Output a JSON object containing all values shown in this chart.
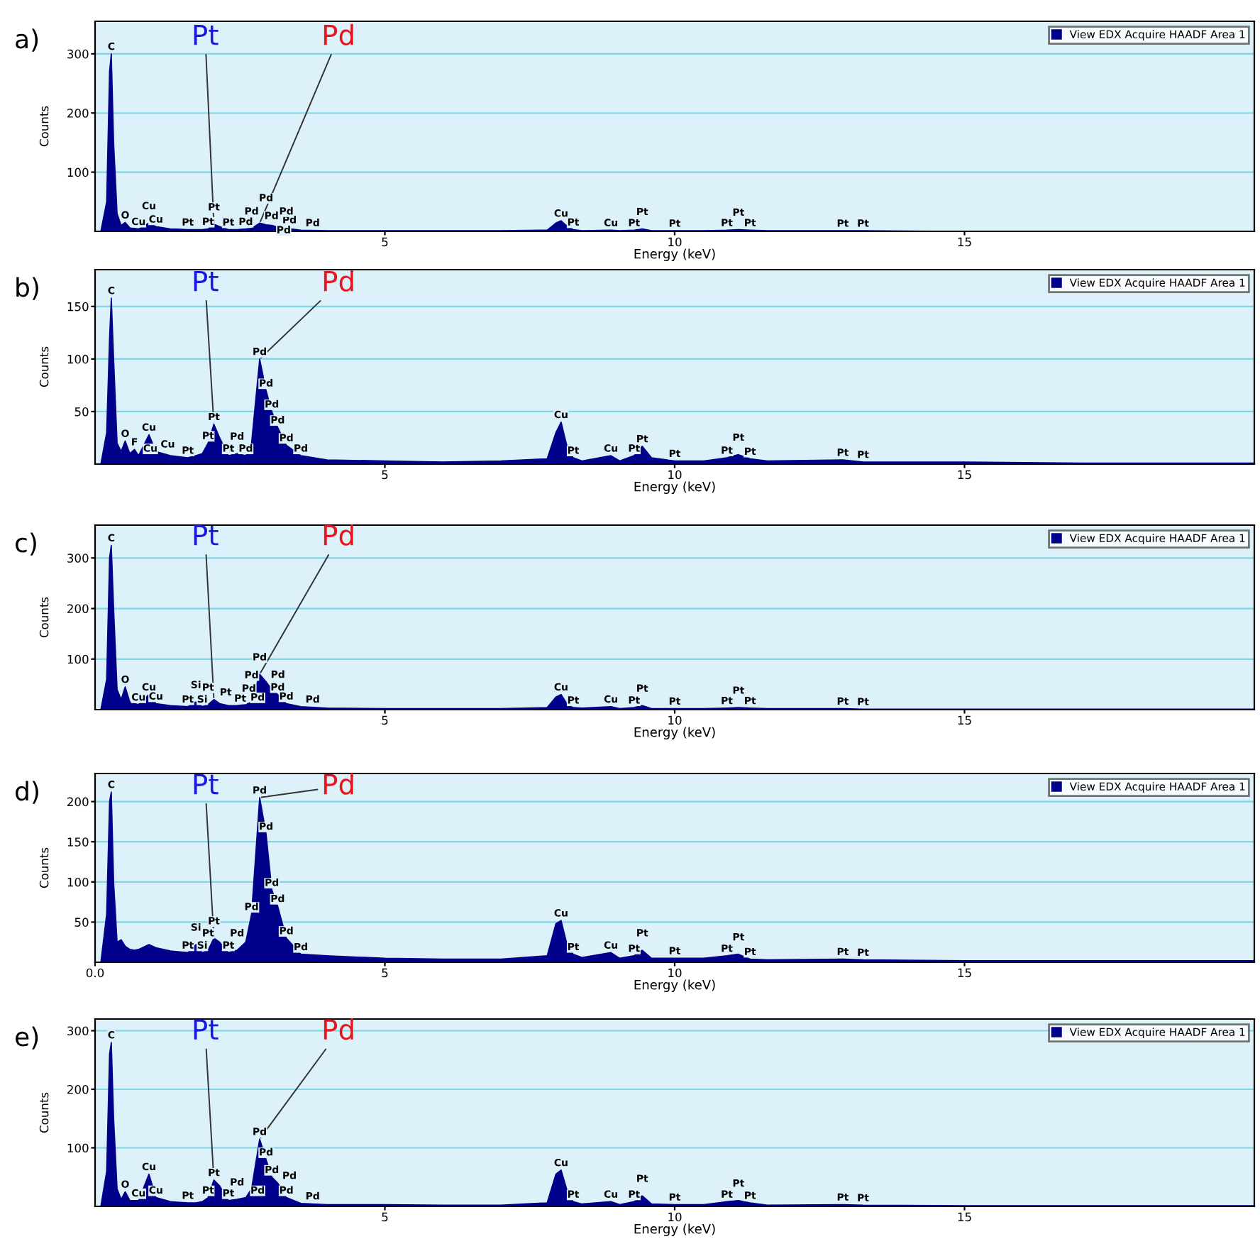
{
  "chart_data": [
    {
      "type": "area",
      "title": "a)",
      "xlabel": "Energy (keV)",
      "ylabel": "Counts",
      "xlim": [
        0,
        20
      ],
      "ylim": [
        0,
        355
      ],
      "xticks": [
        5,
        10,
        15
      ],
      "yticks": [
        100,
        200,
        300
      ],
      "grid": "y",
      "legend": "top right",
      "series": [
        {
          "name": "View EDX Acquire HAADF Area 1",
          "color": "#00008b",
          "x": [
            0.1,
            0.2,
            0.25,
            0.28,
            0.32,
            0.38,
            0.45,
            0.52,
            0.6,
            0.68,
            0.75,
            0.93,
            1.05,
            1.3,
            1.6,
            1.74,
            1.85,
            1.95,
            2.05,
            2.15,
            2.3,
            2.45,
            2.6,
            2.7,
            2.84,
            2.95,
            3.05,
            3.15,
            3.3,
            3.55,
            4.0,
            5,
            6,
            7,
            7.8,
            7.95,
            8.04,
            8.15,
            8.25,
            8.4,
            8.9,
            9.05,
            9.3,
            9.44,
            9.6,
            10.0,
            10.5,
            10.9,
            11.1,
            11.3,
            11.6,
            12.9,
            13.25,
            15,
            17,
            20
          ],
          "values": [
            0,
            50,
            270,
            300,
            150,
            30,
            10,
            15,
            6,
            5,
            4,
            14,
            8,
            4,
            3,
            3,
            3,
            4,
            12,
            8,
            3,
            3,
            4,
            5,
            14,
            11,
            10,
            7,
            5,
            2,
            1,
            1,
            1,
            1,
            2,
            14,
            18,
            8,
            3,
            1,
            2,
            1,
            2,
            4,
            1,
            1,
            1,
            2,
            3,
            2,
            1,
            1,
            1,
            0,
            0,
            0
          ]
        }
      ],
      "annotations": [
        {
          "text": "Pt",
          "x": 2.05,
          "y": 12
        },
        {
          "text": "Pd",
          "x": 2.84,
          "y": 14
        },
        {
          "text": "C",
          "x": 0.28,
          "y": 300
        },
        {
          "text": "O",
          "x": 0.52,
          "y": 15
        },
        {
          "text": "Cu",
          "x": 0.75,
          "y": 4
        },
        {
          "text": "Cu",
          "x": 0.93,
          "y": 14
        },
        {
          "text": "Cu",
          "x": 1.05,
          "y": 8
        },
        {
          "text": "Pt",
          "x": 1.6,
          "y": 3
        },
        {
          "text": "Pt",
          "x": 1.95,
          "y": 4
        },
        {
          "text": "Pt",
          "x": 2.05,
          "y": 12
        },
        {
          "text": "Pt",
          "x": 2.3,
          "y": 3
        },
        {
          "text": "Pd",
          "x": 2.6,
          "y": 4
        },
        {
          "text": "Pd",
          "x": 2.7,
          "y": 5
        },
        {
          "text": "Pd",
          "x": 2.84,
          "y": 14
        },
        {
          "text": "Pd",
          "x": 2.95,
          "y": 11
        },
        {
          "text": "Pd",
          "x": 3.05,
          "y": 10
        },
        {
          "text": "Pd",
          "x": 3.15,
          "y": 7
        },
        {
          "text": "Pd",
          "x": 3.3,
          "y": 5
        },
        {
          "text": "Pd",
          "x": 3.55,
          "y": 2
        },
        {
          "text": "Cu",
          "x": 8.04,
          "y": 18
        },
        {
          "text": "Pt",
          "x": 8.25,
          "y": 3
        },
        {
          "text": "Cu",
          "x": 8.9,
          "y": 2
        },
        {
          "text": "Pt",
          "x": 9.3,
          "y": 2
        },
        {
          "text": "Pt",
          "x": 9.44,
          "y": 4
        },
        {
          "text": "Pt",
          "x": 10.0,
          "y": 1
        },
        {
          "text": "Pt",
          "x": 10.9,
          "y": 2
        },
        {
          "text": "Pt",
          "x": 11.1,
          "y": 3
        },
        {
          "text": "Pt",
          "x": 11.3,
          "y": 2
        },
        {
          "text": "Pt",
          "x": 12.9,
          "y": 1
        },
        {
          "text": "Pt",
          "x": 13.25,
          "y": 1
        }
      ]
    },
    {
      "type": "area",
      "title": "b)",
      "xlabel": "Energy (keV)",
      "ylabel": "Counts",
      "xlim": [
        0,
        20
      ],
      "ylim": [
        0,
        185
      ],
      "xticks": [
        5,
        10,
        15
      ],
      "yticks": [
        50,
        100,
        150
      ],
      "grid": "y",
      "legend": "top right",
      "series": [
        {
          "name": "View EDX Acquire HAADF Area 1",
          "color": "#00008b",
          "x": [
            0.1,
            0.2,
            0.25,
            0.28,
            0.32,
            0.38,
            0.45,
            0.52,
            0.6,
            0.68,
            0.75,
            0.93,
            1.05,
            1.3,
            1.6,
            1.74,
            1.85,
            1.95,
            2.05,
            2.15,
            2.3,
            2.45,
            2.6,
            2.7,
            2.84,
            2.95,
            3.05,
            3.15,
            3.3,
            3.55,
            4.0,
            5,
            6,
            7,
            7.8,
            7.95,
            8.04,
            8.15,
            8.25,
            8.4,
            8.9,
            9.05,
            9.3,
            9.44,
            9.6,
            10.0,
            10.5,
            10.9,
            11.1,
            11.3,
            11.6,
            12.9,
            13.25,
            15,
            17,
            20
          ],
          "values": [
            0,
            30,
            120,
            158,
            100,
            20,
            12,
            22,
            10,
            14,
            8,
            28,
            12,
            8,
            6,
            8,
            10,
            20,
            38,
            25,
            8,
            10,
            8,
            20,
            100,
            70,
            50,
            35,
            18,
            8,
            4,
            3,
            2,
            3,
            5,
            30,
            40,
            15,
            6,
            3,
            8,
            3,
            8,
            17,
            6,
            3,
            3,
            6,
            9,
            5,
            3,
            4,
            2,
            2,
            1,
            1
          ]
        }
      ],
      "annotations": [
        {
          "text": "Pt",
          "x": 2.05,
          "y": 38
        },
        {
          "text": "Pd",
          "x": 2.84,
          "y": 100
        },
        {
          "text": "C",
          "x": 0.28,
          "y": 158
        },
        {
          "text": "O",
          "x": 0.52,
          "y": 22
        },
        {
          "text": "F",
          "x": 0.68,
          "y": 14
        },
        {
          "text": "Cu",
          "x": 0.75,
          "y": 8
        },
        {
          "text": "Cu",
          "x": 0.93,
          "y": 28
        },
        {
          "text": "Cu",
          "x": 1.05,
          "y": 12
        },
        {
          "text": "Pt",
          "x": 1.6,
          "y": 6
        },
        {
          "text": "Pt",
          "x": 1.95,
          "y": 20
        },
        {
          "text": "Pt",
          "x": 2.05,
          "y": 38
        },
        {
          "text": "Pt",
          "x": 2.3,
          "y": 8
        },
        {
          "text": "Pd",
          "x": 2.45,
          "y": 10
        },
        {
          "text": "Pd",
          "x": 2.6,
          "y": 8
        },
        {
          "text": "Pd",
          "x": 2.84,
          "y": 100
        },
        {
          "text": "Pd",
          "x": 2.95,
          "y": 70
        },
        {
          "text": "Pd",
          "x": 3.05,
          "y": 50
        },
        {
          "text": "Pd",
          "x": 3.15,
          "y": 35
        },
        {
          "text": "Pd",
          "x": 3.3,
          "y": 18
        },
        {
          "text": "Pd",
          "x": 3.55,
          "y": 8
        },
        {
          "text": "Cu",
          "x": 8.04,
          "y": 40
        },
        {
          "text": "Pt",
          "x": 8.25,
          "y": 6
        },
        {
          "text": "Cu",
          "x": 8.9,
          "y": 8
        },
        {
          "text": "Pt",
          "x": 9.3,
          "y": 8
        },
        {
          "text": "Pt",
          "x": 9.44,
          "y": 17
        },
        {
          "text": "Pt",
          "x": 10.0,
          "y": 3
        },
        {
          "text": "Pt",
          "x": 10.9,
          "y": 6
        },
        {
          "text": "Pt",
          "x": 11.1,
          "y": 9
        },
        {
          "text": "Pt",
          "x": 11.3,
          "y": 5
        },
        {
          "text": "Pt",
          "x": 12.9,
          "y": 4
        },
        {
          "text": "Pt",
          "x": 13.25,
          "y": 2
        }
      ]
    },
    {
      "type": "area",
      "title": "c)",
      "xlabel": "Energy (keV)",
      "ylabel": "Counts",
      "xlim": [
        0,
        20
      ],
      "ylim": [
        0,
        365
      ],
      "xticks": [
        5,
        10,
        15
      ],
      "yticks": [
        100,
        200,
        300
      ],
      "grid": "y",
      "legend": "top right",
      "series": [
        {
          "name": "View EDX Acquire HAADF Area 1",
          "color": "#00008b",
          "x": [
            0.1,
            0.2,
            0.25,
            0.28,
            0.32,
            0.38,
            0.45,
            0.52,
            0.6,
            0.68,
            0.75,
            0.93,
            1.05,
            1.3,
            1.6,
            1.74,
            1.85,
            1.95,
            2.05,
            2.15,
            2.3,
            2.45,
            2.6,
            2.7,
            2.84,
            2.95,
            3.05,
            3.15,
            3.3,
            3.55,
            4.0,
            5,
            6,
            7,
            7.8,
            7.95,
            8.04,
            8.15,
            8.25,
            8.4,
            8.9,
            9.05,
            9.3,
            9.44,
            9.6,
            10.0,
            10.5,
            10.9,
            11.1,
            11.3,
            11.6,
            12.9,
            13.25,
            15,
            17,
            20
          ],
          "values": [
            0,
            60,
            300,
            325,
            200,
            40,
            20,
            45,
            15,
            12,
            10,
            30,
            12,
            8,
            6,
            15,
            6,
            10,
            20,
            12,
            8,
            8,
            10,
            15,
            70,
            55,
            40,
            30,
            12,
            6,
            3,
            2,
            2,
            2,
            4,
            25,
            30,
            10,
            4,
            3,
            6,
            2,
            4,
            8,
            2,
            2,
            2,
            3,
            4,
            3,
            2,
            2,
            1,
            1,
            1,
            1
          ]
        }
      ],
      "annotations": [
        {
          "text": "Pt",
          "x": 2.05,
          "y": 20
        },
        {
          "text": "Pd",
          "x": 2.84,
          "y": 70
        },
        {
          "text": "C",
          "x": 0.28,
          "y": 325
        },
        {
          "text": "O",
          "x": 0.52,
          "y": 45
        },
        {
          "text": "Cu",
          "x": 0.75,
          "y": 10
        },
        {
          "text": "Cu",
          "x": 0.93,
          "y": 30
        },
        {
          "text": "Cu",
          "x": 1.05,
          "y": 12
        },
        {
          "text": "Pt",
          "x": 1.6,
          "y": 6
        },
        {
          "text": "Si",
          "x": 1.74,
          "y": 15
        },
        {
          "text": "Si",
          "x": 1.85,
          "y": 6
        },
        {
          "text": "Pt",
          "x": 1.95,
          "y": 10
        },
        {
          "text": "Pt",
          "x": 2.05,
          "y": 20
        },
        {
          "text": "Pt",
          "x": 2.3,
          "y": 8
        },
        {
          "text": "Pd",
          "x": 2.45,
          "y": 8
        },
        {
          "text": "Pd",
          "x": 2.6,
          "y": 10
        },
        {
          "text": "Pd",
          "x": 2.7,
          "y": 15
        },
        {
          "text": "Pd",
          "x": 2.84,
          "y": 70
        },
        {
          "text": "Pd",
          "x": 2.95,
          "y": 55
        },
        {
          "text": "Pd",
          "x": 3.15,
          "y": 30
        },
        {
          "text": "Pd",
          "x": 3.3,
          "y": 12
        },
        {
          "text": "Pd",
          "x": 3.55,
          "y": 6
        },
        {
          "text": "Cu",
          "x": 8.04,
          "y": 30
        },
        {
          "text": "Pt",
          "x": 8.25,
          "y": 4
        },
        {
          "text": "Cu",
          "x": 8.9,
          "y": 6
        },
        {
          "text": "Pt",
          "x": 9.3,
          "y": 4
        },
        {
          "text": "Pt",
          "x": 9.44,
          "y": 8
        },
        {
          "text": "Pt",
          "x": 10.0,
          "y": 2
        },
        {
          "text": "Pt",
          "x": 10.9,
          "y": 3
        },
        {
          "text": "Pt",
          "x": 11.1,
          "y": 4
        },
        {
          "text": "Pt",
          "x": 11.3,
          "y": 3
        },
        {
          "text": "Pt",
          "x": 12.9,
          "y": 2
        },
        {
          "text": "Pt",
          "x": 13.25,
          "y": 1
        }
      ]
    },
    {
      "type": "area",
      "title": "d)",
      "xlabel": "Energy (keV)",
      "ylabel": "Counts",
      "xlim": [
        0,
        20
      ],
      "ylim": [
        0,
        235
      ],
      "xticks": [
        {
          "value": 0,
          "label": "0.0"
        },
        5,
        10,
        15
      ],
      "yticks": [
        50,
        100,
        150,
        200
      ],
      "grid": "y",
      "legend": "top right",
      "series": [
        {
          "name": "View EDX Acquire HAADF Area 1",
          "color": "#00008b",
          "x": [
            0.1,
            0.2,
            0.25,
            0.28,
            0.32,
            0.38,
            0.45,
            0.52,
            0.6,
            0.68,
            0.75,
            0.93,
            1.05,
            1.3,
            1.6,
            1.74,
            1.85,
            1.95,
            2.05,
            2.15,
            2.3,
            2.45,
            2.6,
            2.7,
            2.84,
            2.95,
            3.05,
            3.15,
            3.3,
            3.55,
            4.0,
            5,
            6,
            7,
            7.8,
            7.95,
            8.04,
            8.15,
            8.25,
            8.4,
            8.9,
            9.05,
            9.3,
            9.44,
            9.6,
            10.0,
            10.5,
            10.9,
            11.1,
            11.3,
            11.6,
            12.9,
            13.25,
            15,
            17,
            20
          ],
          "values": [
            0,
            60,
            200,
            212,
            100,
            25,
            28,
            20,
            16,
            15,
            16,
            22,
            18,
            14,
            12,
            22,
            12,
            15,
            30,
            25,
            12,
            15,
            25,
            60,
            205,
            160,
            90,
            70,
            30,
            10,
            8,
            5,
            4,
            4,
            8,
            48,
            52,
            20,
            10,
            6,
            12,
            5,
            8,
            15,
            5,
            5,
            5,
            8,
            10,
            4,
            3,
            4,
            3,
            2,
            2,
            2
          ]
        }
      ],
      "annotations": [
        {
          "text": "Pt",
          "x": 2.05,
          "y": 30
        },
        {
          "text": "Pd",
          "x": 2.84,
          "y": 205
        },
        {
          "text": "C",
          "x": 0.28,
          "y": 212
        },
        {
          "text": "Pt",
          "x": 1.6,
          "y": 12
        },
        {
          "text": "Si",
          "x": 1.74,
          "y": 22
        },
        {
          "text": "Si",
          "x": 1.85,
          "y": 12
        },
        {
          "text": "Pt",
          "x": 1.95,
          "y": 15
        },
        {
          "text": "Pt",
          "x": 2.05,
          "y": 30
        },
        {
          "text": "Pt",
          "x": 2.3,
          "y": 12
        },
        {
          "text": "Pd",
          "x": 2.45,
          "y": 15
        },
        {
          "text": "Pd",
          "x": 2.7,
          "y": 60
        },
        {
          "text": "Pd",
          "x": 2.84,
          "y": 205
        },
        {
          "text": "Pd",
          "x": 2.95,
          "y": 160
        },
        {
          "text": "Pd",
          "x": 3.05,
          "y": 90
        },
        {
          "text": "Pd",
          "x": 3.15,
          "y": 70
        },
        {
          "text": "Pd",
          "x": 3.3,
          "y": 30
        },
        {
          "text": "Pd",
          "x": 3.55,
          "y": 10
        },
        {
          "text": "Cu",
          "x": 8.04,
          "y": 52
        },
        {
          "text": "Pt",
          "x": 8.25,
          "y": 10
        },
        {
          "text": "Cu",
          "x": 8.9,
          "y": 12
        },
        {
          "text": "Pt",
          "x": 9.3,
          "y": 8
        },
        {
          "text": "Pt",
          "x": 9.44,
          "y": 15
        },
        {
          "text": "Pt",
          "x": 10.0,
          "y": 5
        },
        {
          "text": "Pt",
          "x": 10.9,
          "y": 8
        },
        {
          "text": "Pt",
          "x": 11.1,
          "y": 10
        },
        {
          "text": "Pt",
          "x": 11.3,
          "y": 4
        },
        {
          "text": "Pt",
          "x": 12.9,
          "y": 4
        },
        {
          "text": "Pt",
          "x": 13.25,
          "y": 3
        }
      ]
    },
    {
      "type": "area",
      "title": "e)",
      "xlabel": "Energy (keV)",
      "ylabel": "Counts",
      "xlim": [
        0,
        20
      ],
      "ylim": [
        0,
        320
      ],
      "xticks": [
        5,
        10,
        15
      ],
      "yticks": [
        100,
        200,
        300
      ],
      "grid": "y",
      "legend": "top right",
      "series": [
        {
          "name": "View EDX Acquire HAADF Area 1",
          "color": "#00008b",
          "x": [
            0.1,
            0.2,
            0.25,
            0.28,
            0.32,
            0.38,
            0.45,
            0.52,
            0.6,
            0.68,
            0.75,
            0.93,
            1.05,
            1.3,
            1.6,
            1.74,
            1.85,
            1.95,
            2.05,
            2.15,
            2.3,
            2.45,
            2.6,
            2.7,
            2.84,
            2.95,
            3.05,
            3.15,
            3.3,
            3.55,
            4.0,
            5,
            6,
            7,
            7.8,
            7.95,
            8.04,
            8.15,
            8.25,
            8.4,
            8.9,
            9.05,
            9.3,
            9.44,
            9.6,
            10.0,
            10.5,
            10.9,
            11.1,
            11.3,
            11.6,
            12.9,
            13.25,
            15,
            17,
            20
          ],
          "values": [
            0,
            60,
            260,
            280,
            150,
            30,
            12,
            25,
            10,
            10,
            10,
            55,
            15,
            8,
            6,
            6,
            8,
            15,
            45,
            35,
            10,
            12,
            15,
            30,
            115,
            80,
            50,
            40,
            15,
            5,
            3,
            3,
            2,
            2,
            6,
            55,
            62,
            25,
            8,
            4,
            8,
            3,
            8,
            18,
            4,
            3,
            3,
            8,
            10,
            6,
            2,
            3,
            2,
            1,
            1,
            1
          ]
        }
      ],
      "annotations": [
        {
          "text": "Pt",
          "x": 2.05,
          "y": 45
        },
        {
          "text": "Pd",
          "x": 2.84,
          "y": 115
        },
        {
          "text": "C",
          "x": 0.28,
          "y": 280
        },
        {
          "text": "O",
          "x": 0.52,
          "y": 25
        },
        {
          "text": "Cu",
          "x": 0.75,
          "y": 10
        },
        {
          "text": "Cu",
          "x": 0.93,
          "y": 55
        },
        {
          "text": "Cu",
          "x": 1.05,
          "y": 15
        },
        {
          "text": "Pt",
          "x": 1.6,
          "y": 6
        },
        {
          "text": "Pt",
          "x": 1.95,
          "y": 15
        },
        {
          "text": "Pt",
          "x": 2.05,
          "y": 45
        },
        {
          "text": "Pt",
          "x": 2.3,
          "y": 10
        },
        {
          "text": "Pd",
          "x": 2.45,
          "y": 12
        },
        {
          "text": "Pd",
          "x": 2.6,
          "y": 15
        },
        {
          "text": "Pd",
          "x": 2.84,
          "y": 115
        },
        {
          "text": "Pd",
          "x": 2.95,
          "y": 80
        },
        {
          "text": "Pd",
          "x": 3.05,
          "y": 50
        },
        {
          "text": "Pd",
          "x": 3.15,
          "y": 40
        },
        {
          "text": "Pd",
          "x": 3.3,
          "y": 15
        },
        {
          "text": "Pd",
          "x": 3.55,
          "y": 5
        },
        {
          "text": "Cu",
          "x": 8.04,
          "y": 62
        },
        {
          "text": "Pt",
          "x": 8.25,
          "y": 8
        },
        {
          "text": "Cu",
          "x": 8.9,
          "y": 8
        },
        {
          "text": "Pt",
          "x": 9.3,
          "y": 8
        },
        {
          "text": "Pt",
          "x": 9.44,
          "y": 18
        },
        {
          "text": "Pt",
          "x": 10.0,
          "y": 3
        },
        {
          "text": "Pt",
          "x": 10.9,
          "y": 8
        },
        {
          "text": "Pt",
          "x": 11.1,
          "y": 10
        },
        {
          "text": "Pt",
          "x": 11.3,
          "y": 6
        },
        {
          "text": "Pt",
          "x": 12.9,
          "y": 3
        },
        {
          "text": "Pt",
          "x": 13.25,
          "y": 2
        }
      ]
    }
  ]
}
